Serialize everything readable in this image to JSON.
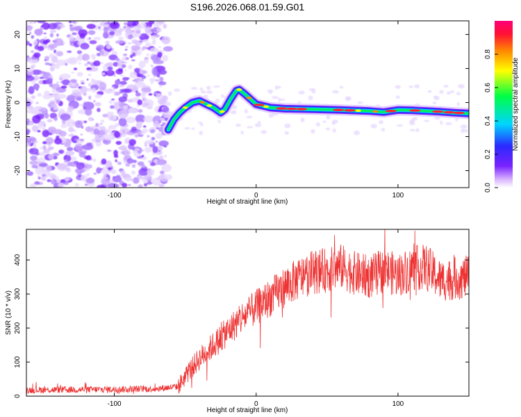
{
  "title": "S196.2026.068.01.59.G01",
  "chart_data": [
    {
      "type": "heatmap",
      "xlabel": "Height of straight line (km)",
      "ylabel": "Frequency (Hz)",
      "xlim": [
        -162,
        150
      ],
      "ylim": [
        -25,
        24
      ],
      "xticks": [
        -100,
        0,
        100
      ],
      "yticks": [
        -20,
        -10,
        0,
        10,
        20
      ],
      "colorbar": {
        "label": "Normalized spectral amplitude",
        "range": [
          0.0,
          1.0
        ],
        "ticks": [
          0.0,
          0.2,
          0.4,
          0.6,
          0.8
        ]
      },
      "noise_region_x": [
        -162,
        -62
      ],
      "signal_trace": {
        "x": [
          -62,
          -58,
          -54,
          -50,
          -45,
          -40,
          -35,
          -30,
          -25,
          -22,
          -18,
          -14,
          -12,
          -8,
          -4,
          0,
          5,
          10,
          20,
          40,
          60,
          80,
          90,
          100,
          110,
          120,
          130,
          140,
          150
        ],
        "y": [
          -8,
          -5,
          -3,
          -1.5,
          0,
          0.5,
          -0.5,
          -1.5,
          -3,
          -2,
          1,
          3.5,
          3.8,
          2.5,
          1,
          -0.5,
          -1,
          -1.5,
          -1.8,
          -2,
          -2.2,
          -2.5,
          -2.8,
          -2.2,
          -2.3,
          -2.5,
          -2.7,
          -3,
          -3.2
        ]
      }
    },
    {
      "type": "line",
      "xlabel": "Height of straight line (km)",
      "ylabel": "SNR (10 * v/v)",
      "xlim": [
        -162,
        150
      ],
      "ylim": [
        0,
        490
      ],
      "xticks": [
        -100,
        0,
        100
      ],
      "yticks": [
        0,
        100,
        200,
        300,
        400
      ],
      "series_color": "#ee3333",
      "trend": {
        "x": [
          -162,
          -100,
          -70,
          -55,
          -48,
          -40,
          -30,
          -20,
          -10,
          0,
          10,
          20,
          30,
          40,
          50,
          60,
          70,
          80,
          90,
          100,
          110,
          120,
          130,
          140,
          150
        ],
        "y": [
          18,
          20,
          22,
          28,
          70,
          110,
          150,
          190,
          230,
          260,
          290,
          320,
          345,
          365,
          370,
          380,
          360,
          350,
          370,
          355,
          375,
          380,
          340,
          345,
          350
        ]
      }
    }
  ]
}
